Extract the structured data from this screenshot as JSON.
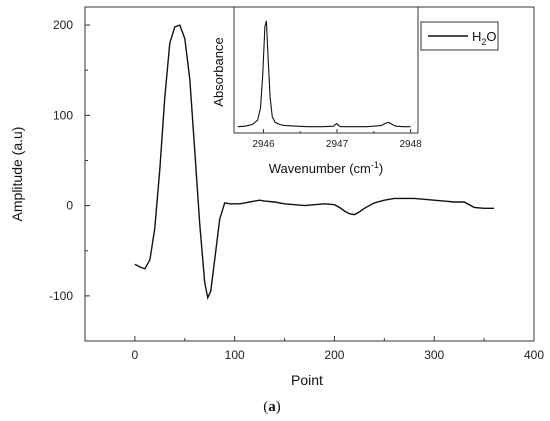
{
  "chart_data": [
    {
      "type": "line",
      "xlabel": "Point",
      "ylabel": "Amplitude (a.u)",
      "xlim": [
        -50,
        400
      ],
      "ylim": [
        -150,
        220
      ],
      "xticks": [
        0,
        100,
        200,
        300,
        400
      ],
      "yticks": [
        -100,
        0,
        100,
        200
      ],
      "grid": false,
      "legend": {
        "position": "top-right",
        "entries": [
          {
            "name": "H",
            "subscript": "2",
            "suffix": "O"
          }
        ]
      },
      "series": [
        {
          "name": "H2O",
          "color": "#000000",
          "x": [
            0,
            5,
            10,
            15,
            20,
            25,
            30,
            35,
            40,
            45,
            50,
            55,
            60,
            65,
            70,
            73,
            76,
            80,
            85,
            90,
            95,
            100,
            105,
            110,
            115,
            120,
            125,
            130,
            140,
            150,
            160,
            170,
            180,
            190,
            200,
            205,
            210,
            215,
            220,
            225,
            230,
            240,
            250,
            260,
            270,
            280,
            290,
            300,
            310,
            320,
            330,
            340,
            350,
            360
          ],
          "values": [
            -65,
            -68,
            -70,
            -60,
            -25,
            40,
            120,
            180,
            198,
            200,
            185,
            140,
            60,
            -20,
            -85,
            -102,
            -95,
            -60,
            -15,
            3,
            2,
            2,
            2,
            3,
            4,
            5,
            6,
            5,
            4,
            2,
            1,
            0,
            1,
            2,
            1,
            -2,
            -6,
            -9,
            -10,
            -7,
            -3,
            3,
            6,
            8,
            8,
            8,
            7,
            6,
            5,
            4,
            4,
            -2,
            -3,
            -3
          ]
        }
      ]
    },
    {
      "type": "line",
      "inset": true,
      "xlabel": "Wavenumber (cm",
      "xlabel_sup": "-1",
      "xlabel_close": ")",
      "ylabel": "Absorbance",
      "xlim": [
        2945.6,
        2948.1
      ],
      "ylim": [
        0,
        1.1
      ],
      "xticks": [
        "2946",
        "2947",
        "2948"
      ],
      "xtick_values": [
        2946,
        2947,
        2948
      ],
      "series": [
        {
          "color": "#000000",
          "x": [
            2945.65,
            2945.75,
            2945.85,
            2945.92,
            2945.96,
            2945.99,
            2946.02,
            2946.04,
            2946.06,
            2946.09,
            2946.12,
            2946.16,
            2946.22,
            2946.3,
            2946.45,
            2946.6,
            2946.8,
            2946.95,
            2946.98,
            2947.0,
            2947.02,
            2947.05,
            2947.2,
            2947.4,
            2947.6,
            2947.65,
            2947.7,
            2947.75,
            2947.8,
            2947.9,
            2948.0
          ],
          "values": [
            0.03,
            0.035,
            0.05,
            0.09,
            0.2,
            0.5,
            0.95,
            1.0,
            0.7,
            0.3,
            0.12,
            0.07,
            0.05,
            0.04,
            0.035,
            0.03,
            0.03,
            0.035,
            0.05,
            0.06,
            0.04,
            0.03,
            0.03,
            0.03,
            0.04,
            0.06,
            0.07,
            0.05,
            0.035,
            0.03,
            0.03
          ]
        }
      ]
    }
  ],
  "caption": {
    "open": "(",
    "letter": "a",
    "close": ")"
  }
}
